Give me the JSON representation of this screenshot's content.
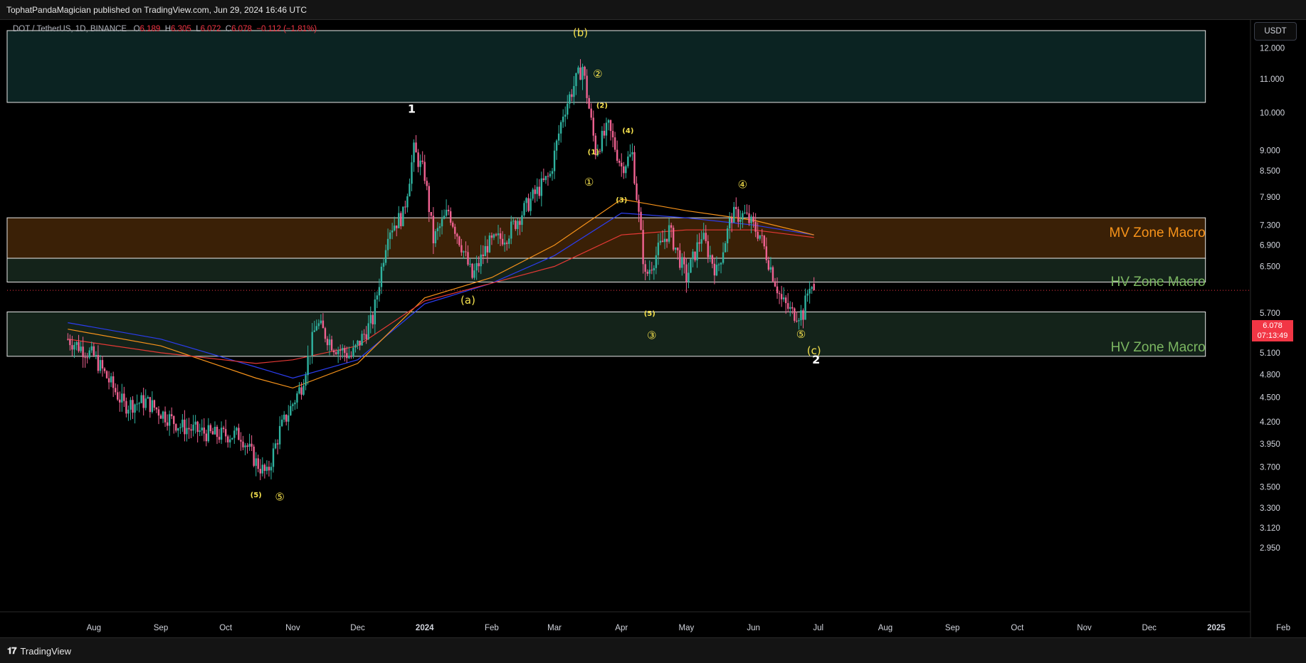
{
  "header": {
    "published": "TophatPandaMagician published on TradingView.com, Jun 29, 2024 16:46 UTC"
  },
  "legend": {
    "symbol": "DOT / TetherUS, 1D, BINANCE",
    "o_label": "O",
    "o_value": "6.189",
    "h_label": "H",
    "h_value": "6.305",
    "l_label": "L",
    "l_value": "6.072",
    "c_label": "C",
    "c_value": "6.078",
    "change": "−0.112 (−1.81%)"
  },
  "currency_button": "USDT",
  "last_price": {
    "value": "6.078",
    "countdown": "07:13:49"
  },
  "footer": {
    "brand": "TradingView"
  },
  "colors": {
    "up": "#2fb3a0",
    "down": "#f06291",
    "ma_blue": "#2b3df0",
    "ma_orange": "#f7931a",
    "ma_red": "#e53935",
    "wave_label": "#f4e04d",
    "zone_orange": "#f7931a",
    "zone_green": "#7bb661",
    "price_tag": "#f23645"
  },
  "chart_data": {
    "type": "candlestick",
    "scale": "log",
    "x_tick_labels": [
      "Aug",
      "Sep",
      "Oct",
      "Nov",
      "Dec",
      "2024",
      "Feb",
      "Mar",
      "Apr",
      "May",
      "Jun",
      "Jul",
      "Aug",
      "Sep",
      "Oct",
      "Nov",
      "Dec",
      "2025",
      "Feb"
    ],
    "y_tick_labels": [
      "12.000",
      "11.000",
      "10.000",
      "9.000",
      "8.500",
      "7.900",
      "7.300",
      "6.900",
      "6.500",
      "5.700",
      "5.400",
      "5.100",
      "4.800",
      "4.500",
      "4.200",
      "3.950",
      "3.700",
      "3.500",
      "3.300",
      "3.120",
      "2.950"
    ],
    "y_ticks": [
      12.0,
      11.0,
      10.0,
      9.0,
      8.5,
      7.9,
      7.3,
      6.9,
      6.5,
      5.7,
      5.4,
      5.1,
      4.8,
      4.5,
      4.2,
      3.95,
      3.7,
      3.5,
      3.3,
      3.12,
      2.95
    ],
    "price_path": [
      [
        "2023-07-20",
        5.3
      ],
      [
        "2023-08-01",
        5.05
      ],
      [
        "2023-08-15",
        4.4
      ],
      [
        "2023-08-25",
        4.45
      ],
      [
        "2023-09-10",
        4.15
      ],
      [
        "2023-09-25",
        4.05
      ],
      [
        "2023-10-08",
        4.05
      ],
      [
        "2023-10-15",
        3.75
      ],
      [
        "2023-10-20",
        3.62
      ],
      [
        "2023-10-26",
        4.1
      ],
      [
        "2023-11-05",
        4.65
      ],
      [
        "2023-11-12",
        5.55
      ],
      [
        "2023-11-20",
        5.2
      ],
      [
        "2023-11-28",
        5.05
      ],
      [
        "2023-12-08",
        5.6
      ],
      [
        "2023-12-15",
        7.2
      ],
      [
        "2023-12-22",
        7.5
      ],
      [
        "2023-12-27",
        9.0
      ],
      [
        "2024-01-01",
        8.4
      ],
      [
        "2024-01-05",
        7.0
      ],
      [
        "2024-01-12",
        7.6
      ],
      [
        "2024-01-18",
        6.9
      ],
      [
        "2024-01-23",
        6.3
      ],
      [
        "2024-01-30",
        6.9
      ],
      [
        "2024-02-08",
        7.1
      ],
      [
        "2024-02-20",
        7.9
      ],
      [
        "2024-02-28",
        8.4
      ],
      [
        "2024-03-05",
        10.0
      ],
      [
        "2024-03-10",
        10.8
      ],
      [
        "2024-03-14",
        11.4
      ],
      [
        "2024-03-20",
        9.0
      ],
      [
        "2024-03-26",
        9.6
      ],
      [
        "2024-04-01",
        8.6
      ],
      [
        "2024-04-06",
        8.9
      ],
      [
        "2024-04-12",
        6.3
      ],
      [
        "2024-04-18",
        6.8
      ],
      [
        "2024-04-23",
        7.2
      ],
      [
        "2024-05-01",
        6.3
      ],
      [
        "2024-05-08",
        7.1
      ],
      [
        "2024-05-15",
        6.4
      ],
      [
        "2024-05-22",
        7.5
      ],
      [
        "2024-05-28",
        7.5
      ],
      [
        "2024-06-04",
        7.1
      ],
      [
        "2024-06-08",
        6.6
      ],
      [
        "2024-06-14",
        5.9
      ],
      [
        "2024-06-19",
        5.7
      ],
      [
        "2024-06-24",
        5.7
      ],
      [
        "2024-06-27",
        6.2
      ],
      [
        "2024-06-29",
        6.078
      ]
    ],
    "moving_averages": [
      {
        "color": "blue",
        "points": [
          [
            "2023-07-20",
            5.55
          ],
          [
            "2023-09-01",
            5.3
          ],
          [
            "2023-10-15",
            4.9
          ],
          [
            "2023-11-01",
            4.75
          ],
          [
            "2023-12-01",
            5.0
          ],
          [
            "2024-01-01",
            5.85
          ],
          [
            "2024-02-01",
            6.2
          ],
          [
            "2024-03-01",
            6.7
          ],
          [
            "2024-04-01",
            7.55
          ],
          [
            "2024-05-01",
            7.45
          ],
          [
            "2024-06-01",
            7.3
          ],
          [
            "2024-06-29",
            7.1
          ]
        ]
      },
      {
        "color": "orange",
        "points": [
          [
            "2023-07-20",
            5.45
          ],
          [
            "2023-09-01",
            5.2
          ],
          [
            "2023-10-15",
            4.75
          ],
          [
            "2023-11-01",
            4.62
          ],
          [
            "2023-12-01",
            4.95
          ],
          [
            "2024-01-01",
            5.95
          ],
          [
            "2024-02-01",
            6.3
          ],
          [
            "2024-03-01",
            6.9
          ],
          [
            "2024-04-01",
            7.85
          ],
          [
            "2024-05-01",
            7.6
          ],
          [
            "2024-06-01",
            7.4
          ],
          [
            "2024-06-29",
            7.1
          ]
        ]
      },
      {
        "color": "red",
        "points": [
          [
            "2023-07-20",
            5.3
          ],
          [
            "2023-09-01",
            5.1
          ],
          [
            "2023-10-15",
            4.95
          ],
          [
            "2023-11-01",
            5.0
          ],
          [
            "2023-12-01",
            5.2
          ],
          [
            "2024-01-01",
            5.9
          ],
          [
            "2024-02-01",
            6.2
          ],
          [
            "2024-03-01",
            6.5
          ],
          [
            "2024-04-01",
            7.1
          ],
          [
            "2024-05-01",
            7.2
          ],
          [
            "2024-06-01",
            7.2
          ],
          [
            "2024-06-29",
            7.05
          ]
        ]
      }
    ],
    "zones": [
      {
        "label": "",
        "top": 12.6,
        "bottom": 10.3,
        "fill": "#0b2322"
      },
      {
        "label": "MV Zone Macro",
        "top": 7.45,
        "bottom": 6.65,
        "fill": "#3a2006",
        "label_color": "orange"
      },
      {
        "label": "HV Zone Macro",
        "top": 6.65,
        "bottom": 6.22,
        "fill": "#14231a",
        "label_color": "green"
      },
      {
        "label": "HV Zone Macro",
        "top": 5.72,
        "bottom": 5.05,
        "fill": "#14231a",
        "label_color": "green"
      }
    ],
    "zone_end_date": "2024-12-27",
    "wave_labels": [
      {
        "text": "(b)",
        "date": "2024-03-13",
        "price": 12.4,
        "style": "paren"
      },
      {
        "text": "1",
        "date": "2023-12-26",
        "price": 10.0,
        "style": "white"
      },
      {
        "text": "2",
        "date": "2024-06-30",
        "price": 4.95,
        "style": "white"
      },
      {
        "text": "(a)",
        "date": "2024-01-21",
        "price": 5.85,
        "style": "paren"
      },
      {
        "text": "(c)",
        "date": "2024-06-29",
        "price": 5.08,
        "style": "paren"
      },
      {
        "text": "②",
        "date": "2024-03-21",
        "price": 11.05,
        "style": "circle"
      },
      {
        "text": "(2)",
        "date": "2024-03-23",
        "price": 10.15,
        "style": "small"
      },
      {
        "text": "(4)",
        "date": "2024-04-04",
        "price": 9.45,
        "style": "small"
      },
      {
        "text": "(1)",
        "date": "2024-03-19",
        "price": 8.9,
        "style": "small"
      },
      {
        "text": "①",
        "date": "2024-03-17",
        "price": 8.15,
        "style": "circle"
      },
      {
        "text": "(3)",
        "date": "2024-04-01",
        "price": 7.78,
        "style": "small"
      },
      {
        "text": "④",
        "date": "2024-05-27",
        "price": 8.1,
        "style": "circle"
      },
      {
        "text": "(5)",
        "date": "2024-04-14",
        "price": 5.66,
        "style": "small"
      },
      {
        "text": "③",
        "date": "2024-04-15",
        "price": 5.3,
        "style": "circle"
      },
      {
        "text": "⑤",
        "date": "2024-06-23",
        "price": 5.32,
        "style": "circle"
      },
      {
        "text": "(5)",
        "date": "2023-10-15",
        "price": 3.4,
        "style": "small"
      },
      {
        "text": "⑤",
        "date": "2023-10-26",
        "price": 3.37,
        "style": "circle"
      }
    ],
    "annotations": [
      "MV Zone Macro",
      "HV Zone Macro",
      "HV Zone Macro"
    ],
    "last_value": 6.078
  }
}
